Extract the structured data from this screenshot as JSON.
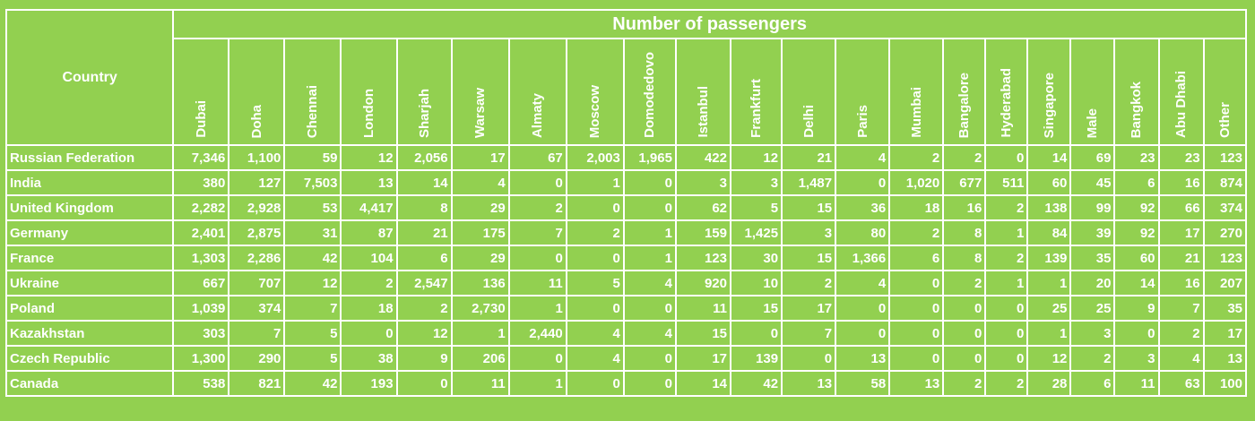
{
  "table": {
    "country_header": "Country",
    "group_header": "Number of passengers",
    "columns": [
      "Dubai",
      "Doha",
      "Chennai",
      "London",
      "Sharjah",
      "Warsaw",
      "Almaty",
      "Moscow",
      "Domodedovo",
      "Istanbul",
      "Frankfurt",
      "Delhi",
      "Paris",
      "Mumbai",
      "Bangalore",
      "Hyderabad",
      "Singapore",
      "Male",
      "Bangkok",
      "Abu Dhabi",
      "Other"
    ],
    "rows": [
      {
        "country": "Russian Federation",
        "values": [
          "7,346",
          "1,100",
          "59",
          "12",
          "2,056",
          "17",
          "67",
          "2,003",
          "1,965",
          "422",
          "12",
          "21",
          "4",
          "2",
          "2",
          "0",
          "14",
          "69",
          "23",
          "23",
          "123"
        ]
      },
      {
        "country": "India",
        "values": [
          "380",
          "127",
          "7,503",
          "13",
          "14",
          "4",
          "0",
          "1",
          "0",
          "3",
          "3",
          "1,487",
          "0",
          "1,020",
          "677",
          "511",
          "60",
          "45",
          "6",
          "16",
          "874"
        ]
      },
      {
        "country": "United Kingdom",
        "values": [
          "2,282",
          "2,928",
          "53",
          "4,417",
          "8",
          "29",
          "2",
          "0",
          "0",
          "62",
          "5",
          "15",
          "36",
          "18",
          "16",
          "2",
          "138",
          "99",
          "92",
          "66",
          "374"
        ]
      },
      {
        "country": "Germany",
        "values": [
          "2,401",
          "2,875",
          "31",
          "87",
          "21",
          "175",
          "7",
          "2",
          "1",
          "159",
          "1,425",
          "3",
          "80",
          "2",
          "8",
          "1",
          "84",
          "39",
          "92",
          "17",
          "270"
        ]
      },
      {
        "country": "France",
        "values": [
          "1,303",
          "2,286",
          "42",
          "104",
          "6",
          "29",
          "0",
          "0",
          "1",
          "123",
          "30",
          "15",
          "1,366",
          "6",
          "8",
          "2",
          "139",
          "35",
          "60",
          "21",
          "123"
        ]
      },
      {
        "country": "Ukraine",
        "values": [
          "667",
          "707",
          "12",
          "2",
          "2,547",
          "136",
          "11",
          "5",
          "4",
          "920",
          "10",
          "2",
          "4",
          "0",
          "2",
          "1",
          "1",
          "20",
          "14",
          "16",
          "207"
        ]
      },
      {
        "country": "Poland",
        "values": [
          "1,039",
          "374",
          "7",
          "18",
          "2",
          "2,730",
          "1",
          "0",
          "0",
          "11",
          "15",
          "17",
          "0",
          "0",
          "0",
          "0",
          "25",
          "25",
          "9",
          "7",
          "35"
        ]
      },
      {
        "country": "Kazakhstan",
        "values": [
          "303",
          "7",
          "5",
          "0",
          "12",
          "1",
          "2,440",
          "4",
          "4",
          "15",
          "0",
          "7",
          "0",
          "0",
          "0",
          "0",
          "1",
          "3",
          "0",
          "2",
          "17"
        ]
      },
      {
        "country": "Czech Republic",
        "values": [
          "1,300",
          "290",
          "5",
          "38",
          "9",
          "206",
          "0",
          "4",
          "0",
          "17",
          "139",
          "0",
          "13",
          "0",
          "0",
          "0",
          "12",
          "2",
          "3",
          "4",
          "13"
        ]
      },
      {
        "country": "Canada",
        "values": [
          "538",
          "821",
          "42",
          "193",
          "0",
          "11",
          "1",
          "0",
          "0",
          "14",
          "42",
          "13",
          "58",
          "13",
          "2",
          "2",
          "28",
          "6",
          "11",
          "63",
          "100"
        ]
      }
    ]
  }
}
